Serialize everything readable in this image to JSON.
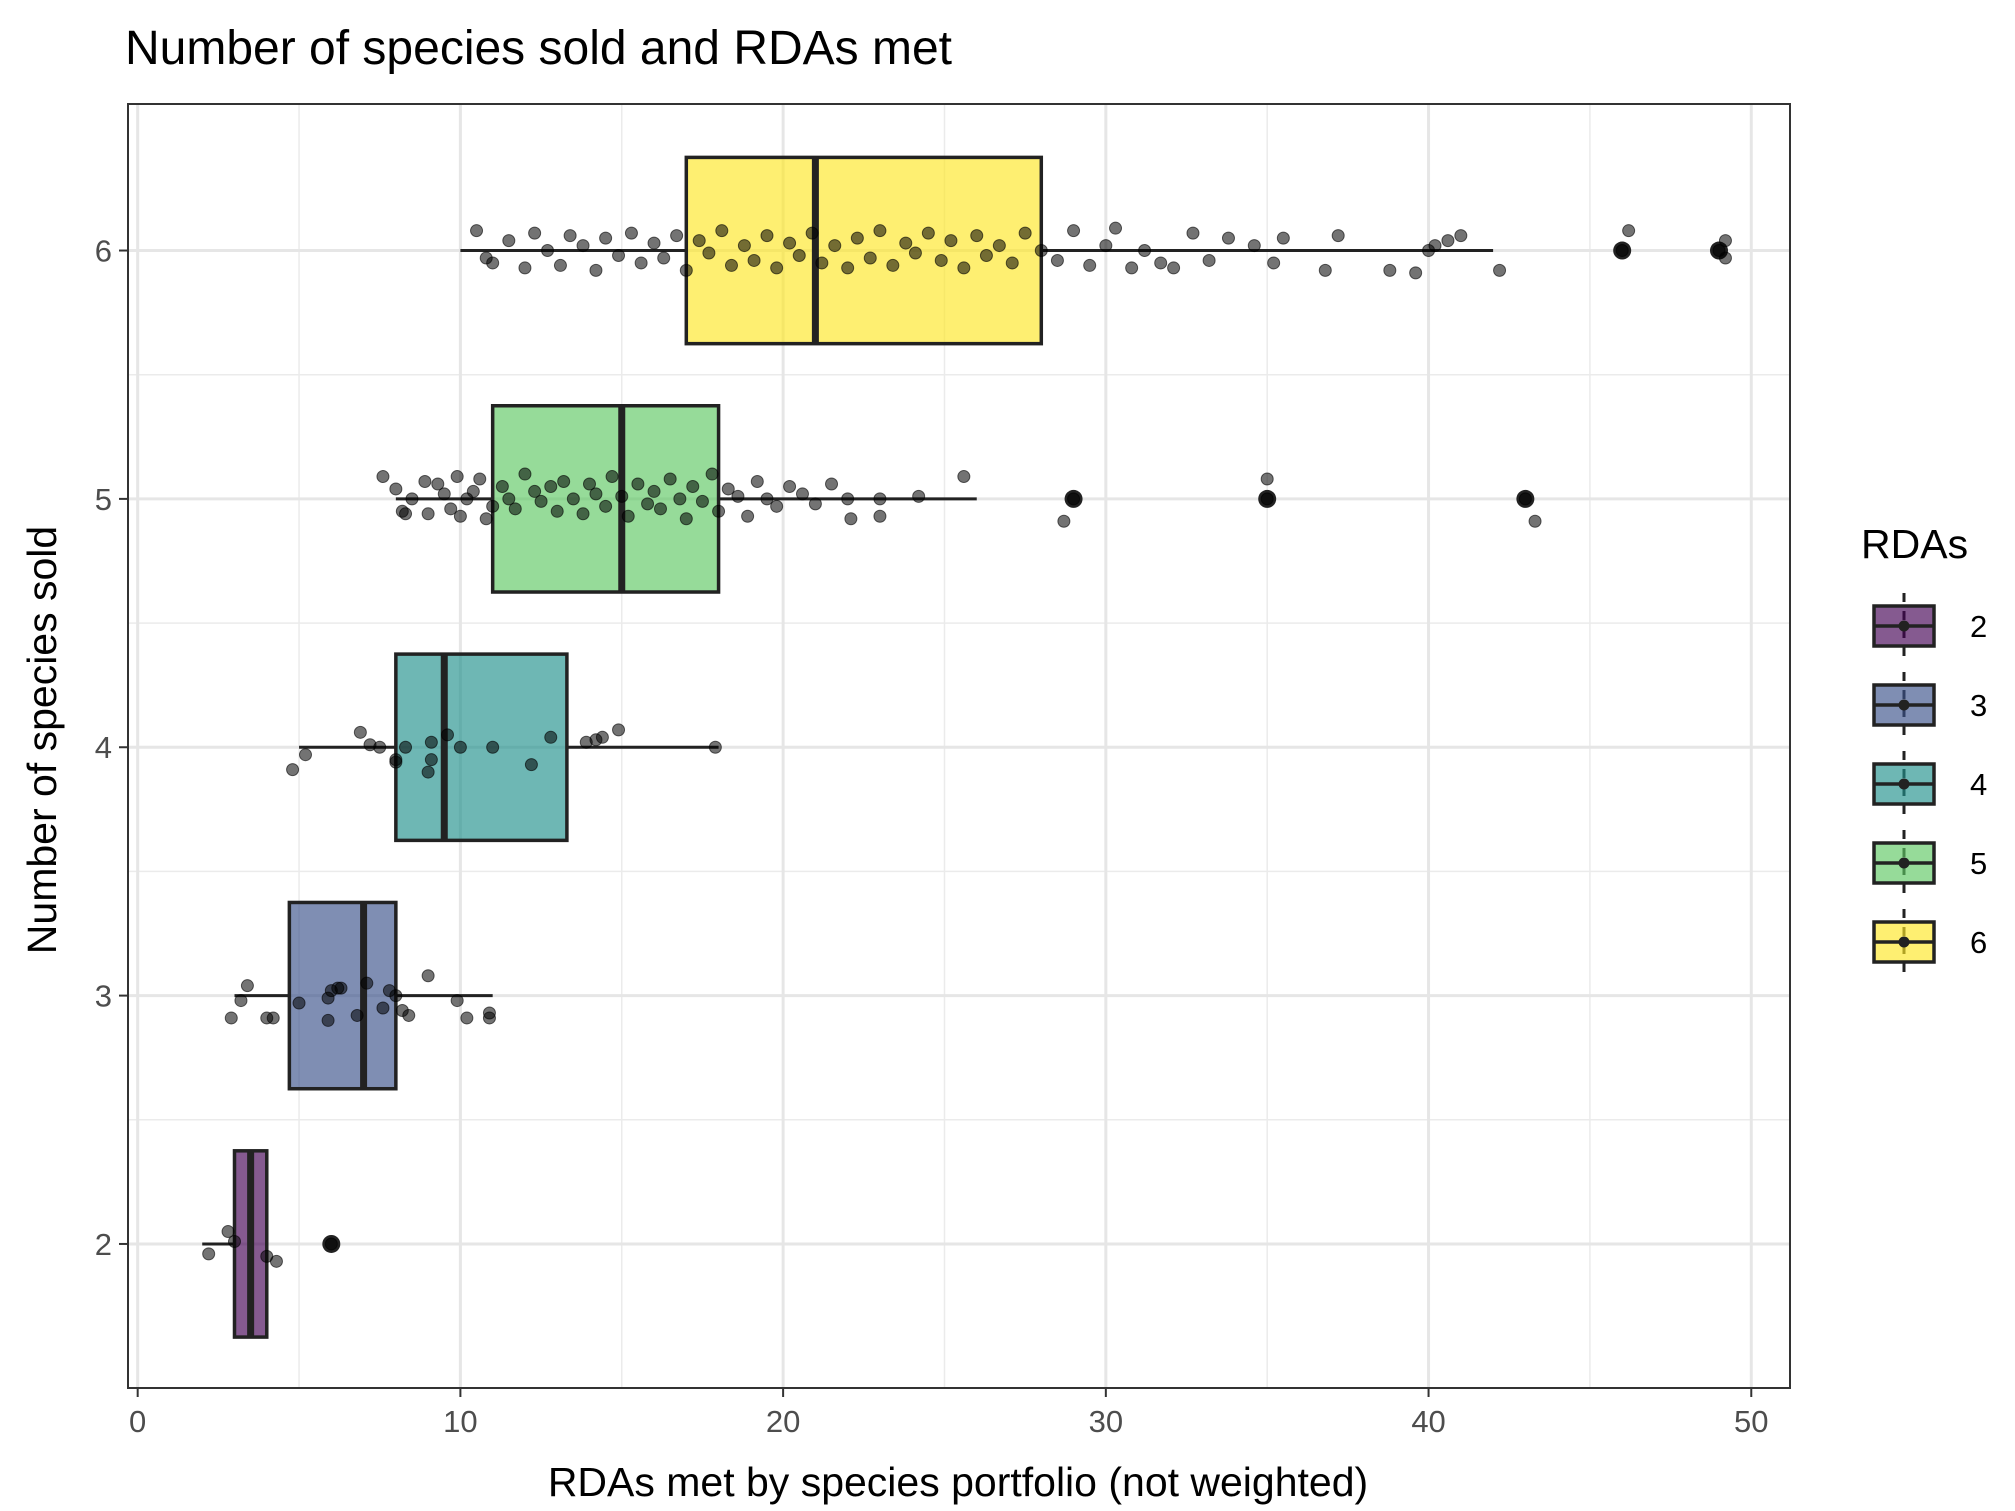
{
  "chart_data": {
    "type": "boxplot",
    "orientation": "horizontal",
    "title": "Number of species sold and RDAs met",
    "xlabel": "RDAs met by species portfolio (not weighted)",
    "ylabel": "Number of species sold",
    "xlim": [
      -0.3,
      51.2
    ],
    "ylim": [
      1.42,
      6.59
    ],
    "x_ticks": [
      0,
      10,
      20,
      30,
      40,
      50
    ],
    "y_ticks": [
      2,
      3,
      4,
      5,
      6
    ],
    "grid": true,
    "legend": {
      "title": "RDAs",
      "position": "right",
      "items": [
        "2",
        "3",
        "4",
        "5",
        "6"
      ]
    },
    "colors": {
      "2": "#440154",
      "3": "#3b528b",
      "4": "#21908c",
      "5": "#5dc863",
      "6": "#fde725"
    },
    "boxes": [
      {
        "group": "2",
        "y": 2,
        "q1": 3.0,
        "median": 3.5,
        "q3": 4.0,
        "whisker_low": 2.0,
        "whisker_high": 4.0,
        "outliers": [
          6
        ]
      },
      {
        "group": "3",
        "y": 3,
        "q1": 4.7,
        "median": 7.0,
        "q3": 8.0,
        "whisker_low": 3.0,
        "whisker_high": 11.0,
        "outliers": []
      },
      {
        "group": "4",
        "y": 4,
        "q1": 8.0,
        "median": 9.5,
        "q3": 13.3,
        "whisker_low": 5.0,
        "whisker_high": 18.0,
        "outliers": []
      },
      {
        "group": "5",
        "y": 5,
        "q1": 11.0,
        "median": 15.0,
        "q3": 18.0,
        "whisker_low": 8.0,
        "whisker_high": 26.0,
        "outliers": [
          29,
          35,
          43
        ]
      },
      {
        "group": "6",
        "y": 6,
        "q1": 17.0,
        "median": 21.0,
        "q3": 28.0,
        "whisker_low": 10.0,
        "whisker_high": 42.0,
        "outliers": [
          46,
          49
        ]
      }
    ],
    "jitter_points": {
      "2": [
        [
          2.2,
          1.96
        ],
        [
          2.8,
          2.05
        ],
        [
          3.0,
          2.01
        ],
        [
          4.0,
          1.95
        ],
        [
          4.3,
          1.93
        ],
        [
          6.0,
          2.0
        ]
      ],
      "3": [
        [
          2.9,
          2.91
        ],
        [
          3.2,
          2.98
        ],
        [
          3.4,
          3.04
        ],
        [
          4.0,
          2.91
        ],
        [
          4.2,
          2.91
        ],
        [
          5.0,
          2.97
        ],
        [
          6.0,
          3.02
        ],
        [
          6.2,
          3.03
        ],
        [
          6.3,
          3.03
        ],
        [
          5.9,
          2.9
        ],
        [
          5.9,
          2.99
        ],
        [
          6.8,
          2.92
        ],
        [
          7.1,
          3.05
        ],
        [
          7.6,
          2.95
        ],
        [
          7.8,
          3.02
        ],
        [
          8.0,
          3.0
        ],
        [
          8.2,
          2.94
        ],
        [
          8.4,
          2.92
        ],
        [
          9.0,
          3.08
        ],
        [
          9.9,
          2.98
        ],
        [
          10.2,
          2.91
        ],
        [
          10.9,
          2.93
        ],
        [
          10.9,
          2.91
        ]
      ],
      "4": [
        [
          4.8,
          3.91
        ],
        [
          5.2,
          3.97
        ],
        [
          6.9,
          4.06
        ],
        [
          7.2,
          4.01
        ],
        [
          7.5,
          4.0
        ],
        [
          8.0,
          3.95
        ],
        [
          8.0,
          3.94
        ],
        [
          8.3,
          4.0
        ],
        [
          9.1,
          3.95
        ],
        [
          9.1,
          4.02
        ],
        [
          9.0,
          3.9
        ],
        [
          9.6,
          4.05
        ],
        [
          10.0,
          4.0
        ],
        [
          11.0,
          4.0
        ],
        [
          12.2,
          3.93
        ],
        [
          12.8,
          4.04
        ],
        [
          13.9,
          4.02
        ],
        [
          14.2,
          4.03
        ],
        [
          14.4,
          4.04
        ],
        [
          14.9,
          4.07
        ],
        [
          17.9,
          4.0
        ]
      ],
      "5": [
        [
          7.6,
          5.09
        ],
        [
          8.0,
          5.04
        ],
        [
          8.2,
          4.95
        ],
        [
          8.3,
          4.94
        ],
        [
          8.5,
          5.0
        ],
        [
          8.9,
          5.07
        ],
        [
          9.0,
          4.94
        ],
        [
          9.3,
          5.06
        ],
        [
          9.5,
          5.02
        ],
        [
          9.7,
          4.96
        ],
        [
          9.9,
          5.09
        ],
        [
          10.0,
          4.93
        ],
        [
          10.2,
          5.0
        ],
        [
          10.4,
          5.03
        ],
        [
          10.6,
          5.08
        ],
        [
          10.8,
          4.92
        ],
        [
          11.0,
          4.97
        ],
        [
          11.3,
          5.05
        ],
        [
          11.5,
          5.0
        ],
        [
          11.7,
          4.96
        ],
        [
          12.0,
          5.1
        ],
        [
          12.3,
          5.03
        ],
        [
          12.5,
          4.99
        ],
        [
          12.8,
          5.05
        ],
        [
          13.0,
          4.95
        ],
        [
          13.2,
          5.07
        ],
        [
          13.5,
          5.0
        ],
        [
          13.8,
          4.94
        ],
        [
          14.0,
          5.06
        ],
        [
          14.2,
          5.02
        ],
        [
          14.5,
          4.97
        ],
        [
          14.7,
          5.09
        ],
        [
          15.0,
          5.01
        ],
        [
          15.2,
          4.93
        ],
        [
          15.5,
          5.06
        ],
        [
          15.8,
          4.98
        ],
        [
          16.0,
          5.03
        ],
        [
          16.2,
          4.96
        ],
        [
          16.5,
          5.08
        ],
        [
          16.8,
          5.0
        ],
        [
          17.0,
          4.92
        ],
        [
          17.2,
          5.05
        ],
        [
          17.5,
          4.99
        ],
        [
          17.8,
          5.1
        ],
        [
          18.0,
          4.95
        ],
        [
          18.3,
          5.04
        ],
        [
          18.6,
          5.01
        ],
        [
          18.9,
          4.93
        ],
        [
          19.2,
          5.07
        ],
        [
          19.5,
          5.0
        ],
        [
          19.8,
          4.97
        ],
        [
          20.2,
          5.05
        ],
        [
          20.6,
          5.02
        ],
        [
          21.0,
          4.98
        ],
        [
          21.5,
          5.06
        ],
        [
          22.0,
          5.0
        ],
        [
          22.1,
          4.92
        ],
        [
          23.0,
          5.0
        ],
        [
          23.0,
          4.93
        ],
        [
          24.2,
          5.01
        ],
        [
          25.6,
          5.09
        ],
        [
          28.7,
          4.91
        ],
        [
          29.0,
          5.0
        ],
        [
          35.0,
          5.08
        ],
        [
          35.0,
          5.0
        ],
        [
          43.0,
          5.0
        ],
        [
          43.3,
          4.91
        ]
      ],
      "6": [
        [
          10.5,
          6.08
        ],
        [
          10.8,
          5.97
        ],
        [
          11.0,
          5.95
        ],
        [
          11.5,
          6.04
        ],
        [
          12.0,
          5.93
        ],
        [
          12.3,
          6.07
        ],
        [
          12.7,
          6.0
        ],
        [
          13.1,
          5.94
        ],
        [
          13.4,
          6.06
        ],
        [
          13.8,
          6.02
        ],
        [
          14.2,
          5.92
        ],
        [
          14.5,
          6.05
        ],
        [
          14.9,
          5.98
        ],
        [
          15.3,
          6.07
        ],
        [
          15.6,
          5.95
        ],
        [
          16.0,
          6.03
        ],
        [
          16.3,
          5.97
        ],
        [
          16.7,
          6.06
        ],
        [
          17.0,
          5.92
        ],
        [
          17.4,
          6.04
        ],
        [
          17.7,
          5.99
        ],
        [
          18.1,
          6.08
        ],
        [
          18.4,
          5.94
        ],
        [
          18.8,
          6.02
        ],
        [
          19.1,
          5.96
        ],
        [
          19.5,
          6.06
        ],
        [
          19.8,
          5.93
        ],
        [
          20.2,
          6.03
        ],
        [
          20.5,
          5.98
        ],
        [
          20.9,
          6.07
        ],
        [
          21.2,
          5.95
        ],
        [
          21.6,
          6.02
        ],
        [
          22.0,
          5.93
        ],
        [
          22.3,
          6.05
        ],
        [
          22.7,
          5.97
        ],
        [
          23.0,
          6.08
        ],
        [
          23.4,
          5.94
        ],
        [
          23.8,
          6.03
        ],
        [
          24.1,
          5.99
        ],
        [
          24.5,
          6.07
        ],
        [
          24.9,
          5.96
        ],
        [
          25.2,
          6.04
        ],
        [
          25.6,
          5.93
        ],
        [
          26.0,
          6.06
        ],
        [
          26.3,
          5.98
        ],
        [
          26.7,
          6.02
        ],
        [
          27.1,
          5.95
        ],
        [
          27.5,
          6.07
        ],
        [
          28.0,
          6.0
        ],
        [
          28.5,
          5.96
        ],
        [
          29.0,
          6.08
        ],
        [
          29.5,
          5.94
        ],
        [
          30.0,
          6.02
        ],
        [
          30.3,
          6.09
        ],
        [
          30.8,
          5.93
        ],
        [
          31.2,
          6.0
        ],
        [
          31.7,
          5.95
        ],
        [
          32.1,
          5.93
        ],
        [
          32.7,
          6.07
        ],
        [
          33.2,
          5.96
        ],
        [
          33.8,
          6.05
        ],
        [
          34.6,
          6.02
        ],
        [
          35.2,
          5.95
        ],
        [
          35.5,
          6.05
        ],
        [
          36.8,
          5.92
        ],
        [
          37.2,
          6.06
        ],
        [
          38.8,
          5.92
        ],
        [
          39.6,
          5.91
        ],
        [
          40.0,
          6.0
        ],
        [
          40.2,
          6.02
        ],
        [
          40.6,
          6.04
        ],
        [
          41.0,
          6.06
        ],
        [
          42.2,
          5.92
        ],
        [
          46.0,
          6.0
        ],
        [
          46.2,
          6.08
        ],
        [
          49.0,
          6.0
        ],
        [
          49.2,
          5.97
        ],
        [
          49.2,
          6.04
        ]
      ]
    }
  }
}
